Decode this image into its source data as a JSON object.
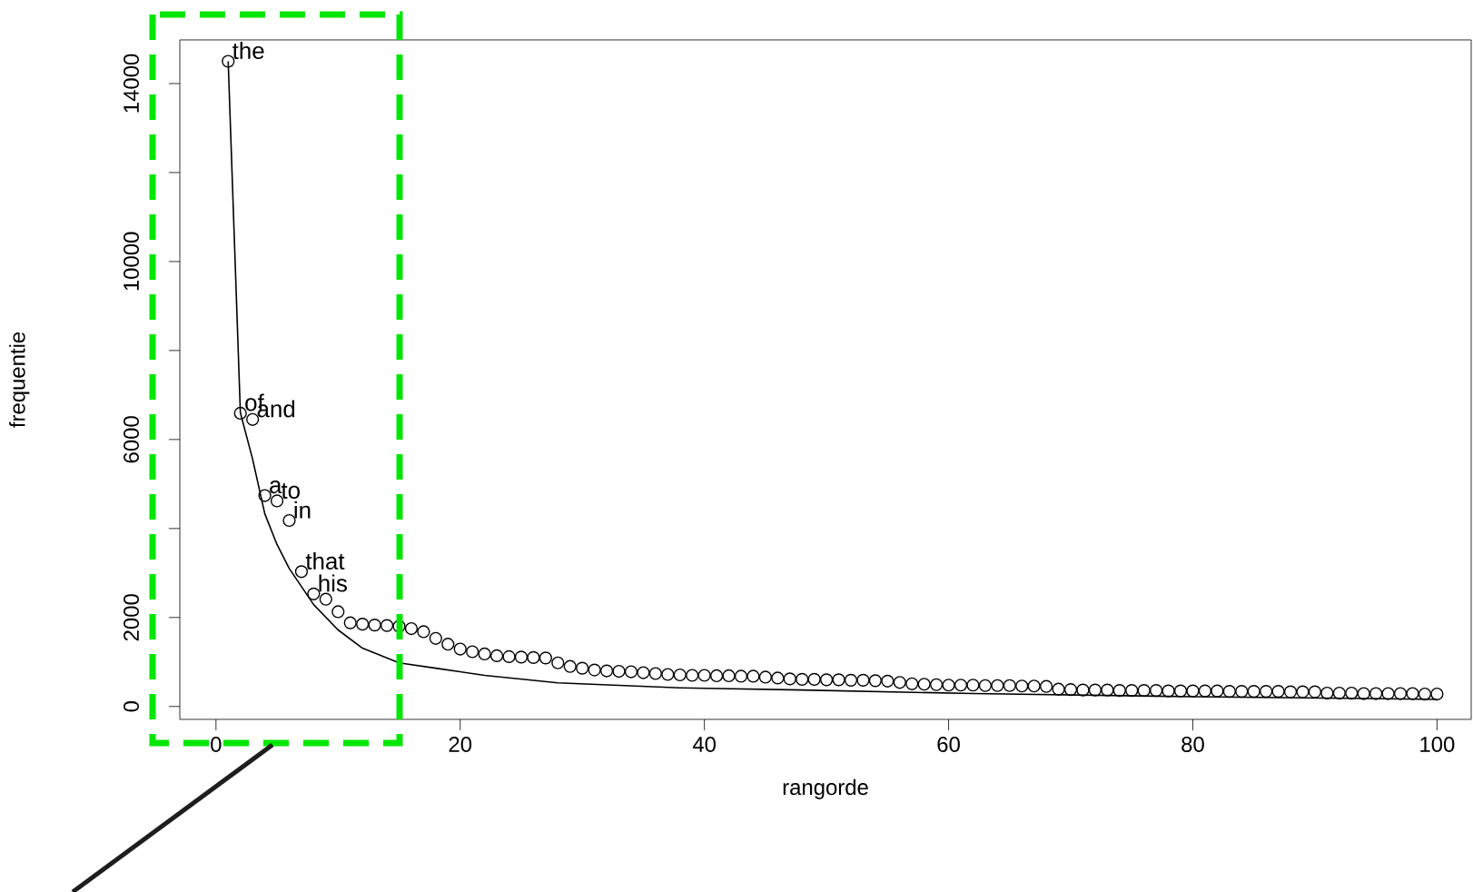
{
  "chart_data": {
    "type": "scatter",
    "xlabel": "rangorde",
    "ylabel": "frequentie",
    "xlim": [
      -2.96,
      102.8
    ],
    "ylim": [
      -290,
      14980
    ],
    "xticks": [
      0,
      20,
      40,
      60,
      80,
      100
    ],
    "yticks": [
      0,
      2000,
      {
        "value": 4000,
        "label": null
      },
      6000,
      {
        "value": 8000,
        "label": null
      },
      10000,
      {
        "value": 12000,
        "label": null
      },
      14000
    ],
    "color": "#000000",
    "series": [
      {
        "marker": "circle",
        "x": [
          1,
          2,
          3,
          4,
          5,
          6,
          7,
          8,
          9,
          10,
          11,
          12,
          13,
          14,
          15,
          16,
          17,
          18,
          19,
          20,
          21,
          22,
          23,
          24,
          25,
          26,
          27,
          28,
          29,
          30,
          31,
          32,
          33,
          34,
          35,
          36,
          37,
          38,
          39,
          40,
          41,
          42,
          43,
          44,
          45,
          46,
          47,
          48,
          49,
          50,
          51,
          52,
          53,
          54,
          55,
          56,
          57,
          58,
          59,
          60,
          61,
          62,
          63,
          64,
          65,
          66,
          67,
          68,
          69,
          70,
          71,
          72,
          73,
          74,
          75,
          76,
          77,
          78,
          79,
          80,
          81,
          82,
          83,
          84,
          85,
          86,
          87,
          88,
          89,
          90,
          91,
          92,
          93,
          94,
          95,
          96,
          97,
          98,
          99,
          100
        ],
        "values": [
          14500,
          6590,
          6450,
          4740,
          4620,
          4180,
          3030,
          2530,
          2410,
          2130,
          1880,
          1850,
          1830,
          1820,
          1800,
          1750,
          1680,
          1530,
          1400,
          1290,
          1230,
          1180,
          1140,
          1120,
          1110,
          1100,
          1090,
          980,
          900,
          860,
          820,
          800,
          790,
          780,
          760,
          740,
          720,
          710,
          700,
          700,
          690,
          690,
          680,
          680,
          660,
          640,
          620,
          610,
          610,
          600,
          600,
          590,
          590,
          580,
          570,
          540,
          510,
          500,
          490,
          480,
          480,
          480,
          470,
          470,
          470,
          460,
          460,
          450,
          390,
          380,
          370,
          370,
          370,
          360,
          360,
          360,
          360,
          350,
          350,
          350,
          350,
          350,
          340,
          340,
          340,
          340,
          340,
          330,
          330,
          330,
          300,
          300,
          300,
          290,
          290,
          290,
          290,
          290,
          280,
          280
        ]
      },
      {
        "type": "line",
        "marker": "none",
        "x": [
          1,
          2,
          3,
          4,
          5,
          6,
          8,
          10,
          12,
          15,
          18,
          22,
          28,
          38,
          48,
          62,
          80,
          100
        ],
        "values": [
          14500,
          6600,
          5560,
          4330,
          3640,
          3100,
          2290,
          1720,
          1310,
          980,
          860,
          700,
          530,
          420,
          370,
          290,
          220,
          160
        ]
      }
    ],
    "annotations": [
      {
        "text": "the",
        "x": 1,
        "y": 14500
      },
      {
        "text": "of",
        "x": 2,
        "y": 6590
      },
      {
        "text": "and",
        "x": 3,
        "y": 6450
      },
      {
        "text": "a",
        "x": 4,
        "y": 4740
      },
      {
        "text": "to",
        "x": 5,
        "y": 4620
      },
      {
        "text": "in",
        "x": 6,
        "y": 4180
      },
      {
        "text": "that",
        "x": 7,
        "y": 3030
      },
      {
        "text": "his",
        "x": 8,
        "y": 2530
      }
    ]
  }
}
